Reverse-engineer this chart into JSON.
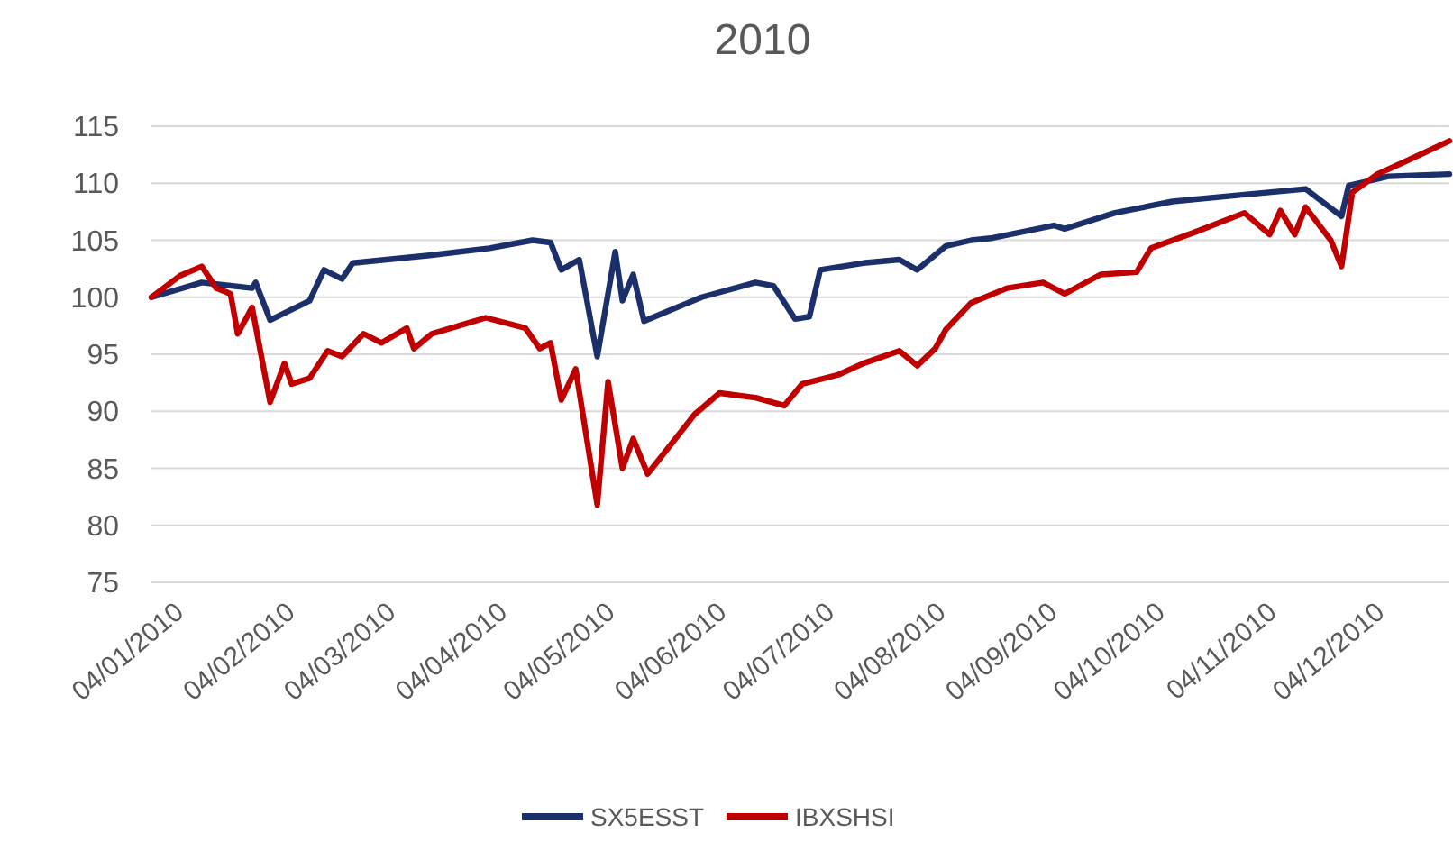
{
  "chart_data": {
    "type": "line",
    "title": "2010",
    "xlim": [
      "2009-12-29",
      "2010-12-25"
    ],
    "xticks": [
      {
        "value": "2010-01-04",
        "label": "04/01/2010"
      },
      {
        "value": "2010-02-04",
        "label": "04/02/2010"
      },
      {
        "value": "2010-03-04",
        "label": "04/03/2010"
      },
      {
        "value": "2010-04-04",
        "label": "04/04/2010"
      },
      {
        "value": "2010-05-04",
        "label": "04/05/2010"
      },
      {
        "value": "2010-06-04",
        "label": "04/06/2010"
      },
      {
        "value": "2010-07-04",
        "label": "04/07/2010"
      },
      {
        "value": "2010-08-04",
        "label": "04/08/2010"
      },
      {
        "value": "2010-09-04",
        "label": "04/09/2010"
      },
      {
        "value": "2010-10-04",
        "label": "04/10/2010"
      },
      {
        "value": "2010-11-04",
        "label": "04/11/2010"
      },
      {
        "value": "2010-12-04",
        "label": "04/12/2010"
      }
    ],
    "ylim": [
      75,
      115
    ],
    "yticks": [
      75,
      80,
      85,
      90,
      95,
      100,
      105,
      110,
      115
    ],
    "grid": "y",
    "legend": "bottom",
    "line_style": "solid",
    "marker": "none",
    "series": [
      {
        "name": "SX5ESST",
        "color": "#1b2f6b",
        "x": [
          "2009-12-29",
          "2010-01-12",
          "2010-01-26",
          "2010-01-27",
          "2010-01-31",
          "2010-02-11",
          "2010-02-15",
          "2010-02-20",
          "2010-02-23",
          "2010-03-17",
          "2010-04-02",
          "2010-04-14",
          "2010-04-19",
          "2010-04-22",
          "2010-04-27",
          "2010-05-02",
          "2010-05-07",
          "2010-05-09",
          "2010-05-12",
          "2010-05-15",
          "2010-05-21",
          "2010-05-31",
          "2010-06-15",
          "2010-06-20",
          "2010-06-26",
          "2010-06-30",
          "2010-07-03",
          "2010-07-15",
          "2010-07-25",
          "2010-07-30",
          "2010-08-07",
          "2010-08-14",
          "2010-08-20",
          "2010-09-06",
          "2010-09-09",
          "2010-09-23",
          "2010-10-09",
          "2010-10-29",
          "2010-11-15",
          "2010-11-25",
          "2010-11-27",
          "2010-12-08",
          "2010-12-25"
        ],
        "values": [
          100,
          101.3,
          100.8,
          101.3,
          98,
          99.7,
          102.4,
          101.6,
          103,
          103.7,
          104.3,
          105,
          104.8,
          102.4,
          103.3,
          94.8,
          104,
          99.7,
          102,
          97.9,
          98.7,
          100,
          101.3,
          101,
          98.1,
          98.3,
          102.4,
          103,
          103.3,
          102.4,
          104.5,
          105,
          105.2,
          106.3,
          106,
          107.4,
          108.4,
          109,
          109.5,
          107.1,
          109.8,
          110.6,
          110.8
        ]
      },
      {
        "name": "IBXSHSI",
        "color": "#c00000",
        "x": [
          "2009-12-29",
          "2010-01-06",
          "2010-01-12",
          "2010-01-16",
          "2010-01-20",
          "2010-01-22",
          "2010-01-26",
          "2010-01-31",
          "2010-02-04",
          "2010-02-06",
          "2010-02-11",
          "2010-02-16",
          "2010-02-20",
          "2010-02-26",
          "2010-03-03",
          "2010-03-10",
          "2010-03-12",
          "2010-03-17",
          "2010-04-01",
          "2010-04-12",
          "2010-04-16",
          "2010-04-19",
          "2010-04-22",
          "2010-04-26",
          "2010-05-02",
          "2010-05-05",
          "2010-05-09",
          "2010-05-12",
          "2010-05-16",
          "2010-05-21",
          "2010-05-29",
          "2010-06-05",
          "2010-06-15",
          "2010-06-23",
          "2010-06-28",
          "2010-07-08",
          "2010-07-15",
          "2010-07-25",
          "2010-07-30",
          "2010-08-04",
          "2010-08-07",
          "2010-08-14",
          "2010-08-24",
          "2010-09-03",
          "2010-09-09",
          "2010-09-19",
          "2010-09-29",
          "2010-10-03",
          "2010-10-16",
          "2010-10-29",
          "2010-11-05",
          "2010-11-08",
          "2010-11-12",
          "2010-11-15",
          "2010-11-22",
          "2010-11-25",
          "2010-11-28",
          "2010-12-05",
          "2010-12-12",
          "2010-12-25"
        ],
        "values": [
          100,
          101.9,
          102.7,
          100.8,
          100.3,
          96.8,
          99.1,
          90.8,
          94.2,
          92.4,
          92.9,
          95.3,
          94.8,
          96.8,
          96,
          97.3,
          95.5,
          96.8,
          98.2,
          97.3,
          95.5,
          96,
          91,
          93.7,
          81.8,
          92.6,
          85,
          87.6,
          84.5,
          86.5,
          89.7,
          91.6,
          91.2,
          90.5,
          92.4,
          93.2,
          94.2,
          95.3,
          94,
          95.5,
          97.2,
          99.5,
          100.8,
          101.3,
          100.3,
          102,
          102.2,
          104.3,
          105.8,
          107.4,
          105.5,
          107.6,
          105.5,
          107.9,
          105,
          102.7,
          109.2,
          110.8,
          111.8,
          113.7
        ]
      }
    ]
  }
}
